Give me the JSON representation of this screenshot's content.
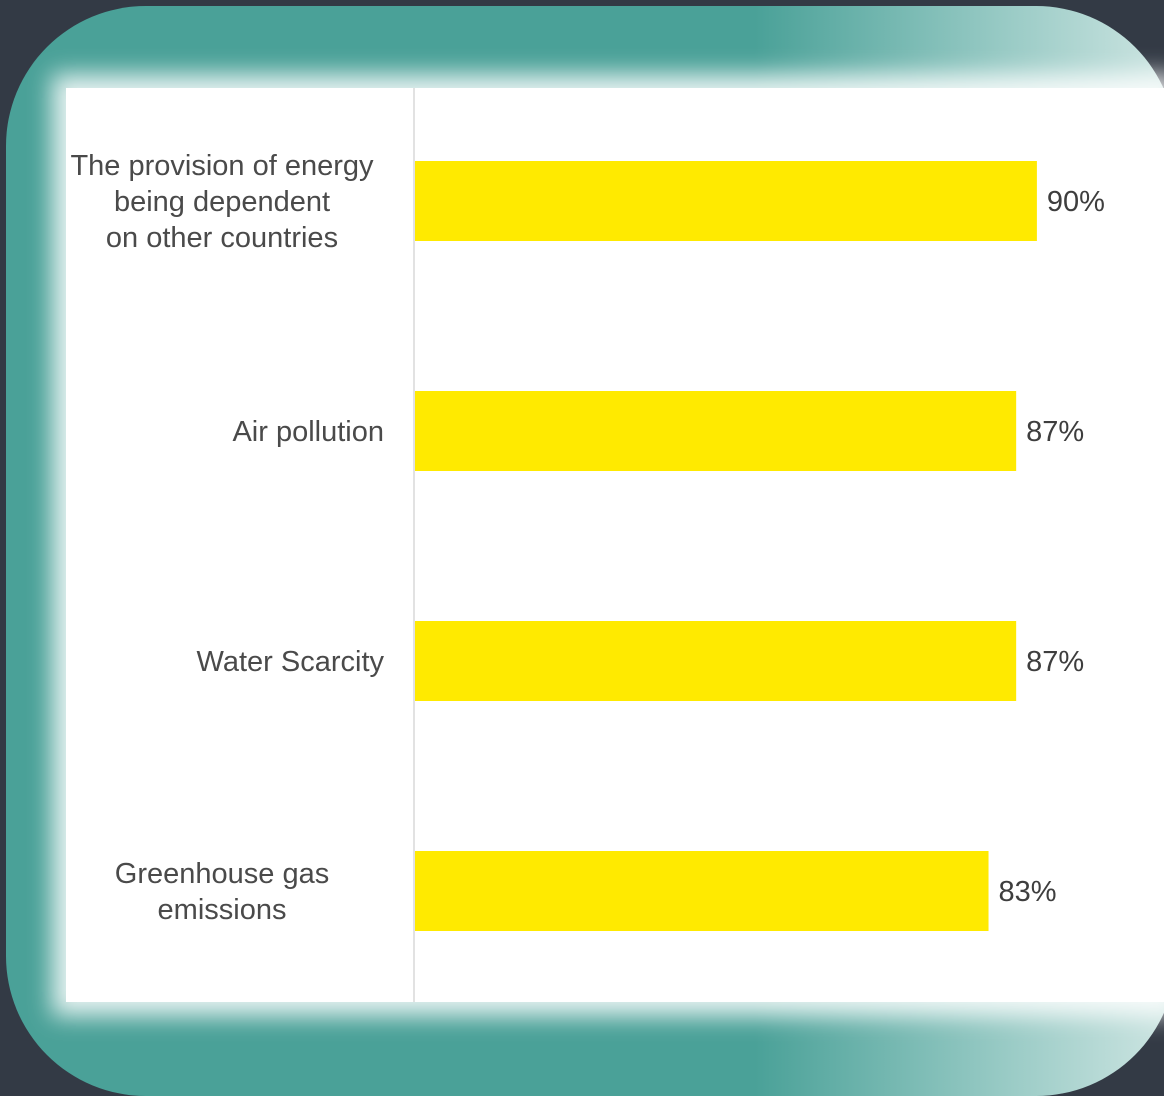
{
  "chart_data": {
    "type": "bar",
    "orientation": "horizontal",
    "categories": [
      [
        "The provision of energy",
        "being dependent",
        "on other countries"
      ],
      [
        "Air pollution"
      ],
      [
        "Water Scarcity"
      ],
      [
        "Greenhouse gas",
        "emissions"
      ]
    ],
    "values": [
      90,
      87,
      87,
      83
    ],
    "value_labels": [
      "90%",
      "87%",
      "87%",
      "83%"
    ],
    "title": "",
    "xlabel": "",
    "ylabel": "",
    "xlim": [
      0,
      100
    ],
    "grid": false,
    "legend": "none",
    "colors": {
      "bar": "#ffea00",
      "axis": "#d9d9d9",
      "frame": "#4aa198",
      "background": "#333a45"
    }
  }
}
